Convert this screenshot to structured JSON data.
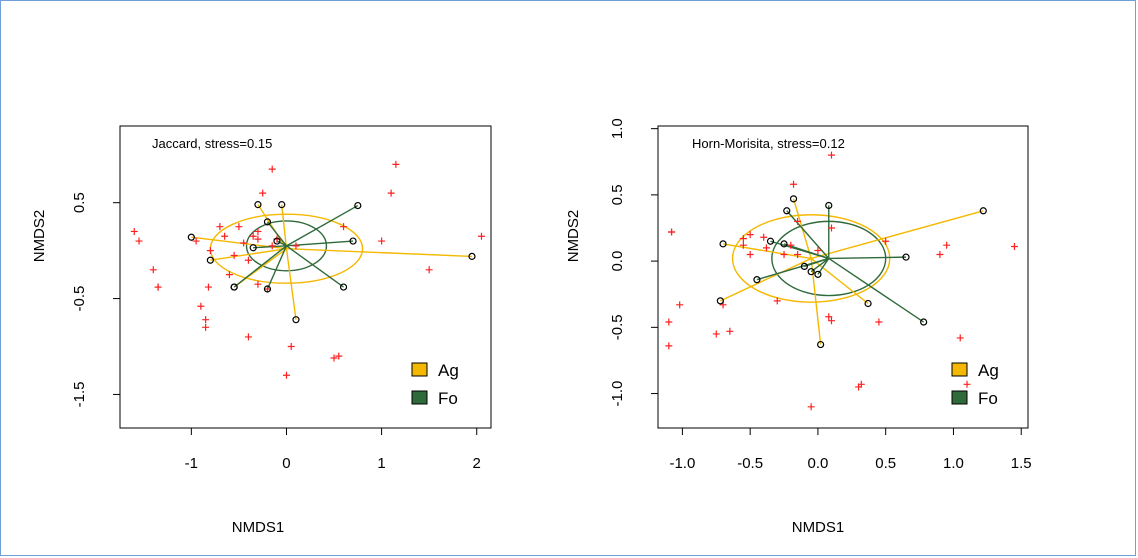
{
  "colors": {
    "ag": "#f5b800",
    "fo": "#2f6a3a",
    "species": "#ff2020",
    "frame": "#6f9fd8"
  },
  "chart_data": [
    {
      "type": "scatter",
      "annotation": "Jaccard, stress=0.15",
      "xlabel": "NMDS1",
      "ylabel": "NMDS2",
      "xlim": [
        -1.75,
        2.15
      ],
      "ylim": [
        -1.85,
        1.3
      ],
      "xticks": [
        -1,
        0,
        1,
        2
      ],
      "xtick_labels": [
        "-1",
        "0",
        "1",
        "2"
      ],
      "yticks": [
        -1.5,
        -0.5,
        0.5
      ],
      "ytick_labels": [
        "-1.5",
        "-0.5",
        "0.5"
      ],
      "legend": [
        {
          "label": "Ag",
          "color": "#f5b800"
        },
        {
          "label": "Fo",
          "color": "#2f6a3a"
        }
      ],
      "legend_position": "bottom-right",
      "species": [
        [
          -1.6,
          0.2
        ],
        [
          -1.55,
          0.1
        ],
        [
          -1.4,
          -0.2
        ],
        [
          -1.35,
          -0.38
        ],
        [
          -1.35,
          -0.38
        ],
        [
          -0.95,
          0.1
        ],
        [
          -0.8,
          0.0
        ],
        [
          -0.9,
          -0.58
        ],
        [
          -0.85,
          -0.72
        ],
        [
          -0.85,
          -0.8
        ],
        [
          -0.82,
          -0.38
        ],
        [
          -0.7,
          0.25
        ],
        [
          -0.65,
          0.15
        ],
        [
          -0.6,
          -0.25
        ],
        [
          -0.55,
          -0.05
        ],
        [
          -0.5,
          0.25
        ],
        [
          -0.45,
          0.08
        ],
        [
          -0.4,
          -0.1
        ],
        [
          -0.4,
          -0.9
        ],
        [
          -0.35,
          0.15
        ],
        [
          -0.3,
          0.2
        ],
        [
          -0.3,
          -0.35
        ],
        [
          -0.2,
          -0.4
        ],
        [
          -0.15,
          0.85
        ],
        [
          -0.1,
          0.12
        ],
        [
          0.05,
          -1.0
        ],
        [
          0.0,
          -1.3
        ],
        [
          0.1,
          0.05
        ],
        [
          0.5,
          -1.12
        ],
        [
          0.55,
          -1.1
        ],
        [
          0.6,
          0.25
        ],
        [
          1.0,
          0.1
        ],
        [
          1.1,
          0.6
        ],
        [
          1.15,
          0.9
        ],
        [
          1.5,
          -0.2
        ],
        [
          2.05,
          0.15
        ],
        [
          -0.25,
          0.6
        ],
        [
          -0.3,
          0.12
        ],
        [
          -0.15,
          0.05
        ]
      ],
      "ag": {
        "centroid": [
          0.0,
          0.02
        ],
        "sites": [
          [
            -1.0,
            0.14
          ],
          [
            -0.8,
            -0.1
          ],
          [
            -0.3,
            0.48
          ],
          [
            -0.05,
            0.48
          ],
          [
            0.1,
            -0.72
          ],
          [
            1.95,
            -0.06
          ],
          [
            -0.55,
            -0.38
          ]
        ],
        "ellipse": {
          "rx": 0.8,
          "ry": 0.36
        }
      },
      "fo": {
        "centroid": [
          0.0,
          0.05
        ],
        "sites": [
          [
            0.75,
            0.47
          ],
          [
            0.7,
            0.1
          ],
          [
            0.6,
            -0.38
          ],
          [
            -0.2,
            -0.4
          ],
          [
            -0.35,
            0.03
          ],
          [
            -0.55,
            -0.38
          ],
          [
            -0.1,
            0.1
          ],
          [
            -0.2,
            0.3
          ]
        ],
        "ellipse": {
          "rx": 0.42,
          "ry": 0.26
        }
      }
    },
    {
      "type": "scatter",
      "annotation": "Horn-Morisita, stress=0.12",
      "xlabel": "NMDS1",
      "ylabel": "NMDS2",
      "xlim": [
        -1.18,
        1.55
      ],
      "ylim": [
        -1.26,
        1.02
      ],
      "xticks": [
        -1.0,
        -0.5,
        0.0,
        0.5,
        1.0,
        1.5
      ],
      "xtick_labels": [
        "-1.0",
        "-0.5",
        "0.0",
        "0.5",
        "1.0",
        "1.5"
      ],
      "yticks": [
        -1.0,
        -0.5,
        0.0,
        0.5,
        1.0
      ],
      "ytick_labels": [
        "-1.0",
        "-0.5",
        "0.0",
        "0.5",
        "1.0"
      ],
      "legend": [
        {
          "label": "Ag",
          "color": "#f5b800"
        },
        {
          "label": "Fo",
          "color": "#2f6a3a"
        }
      ],
      "legend_position": "bottom-right",
      "species": [
        [
          -1.08,
          0.22
        ],
        [
          -1.08,
          0.22
        ],
        [
          -1.02,
          -0.33
        ],
        [
          -1.1,
          -0.46
        ],
        [
          -1.1,
          -0.64
        ],
        [
          -0.75,
          -0.55
        ],
        [
          -0.7,
          -0.33
        ],
        [
          -0.65,
          -0.53
        ],
        [
          -0.55,
          0.12
        ],
        [
          -0.5,
          0.05
        ],
        [
          -0.55,
          0.17
        ],
        [
          -0.5,
          0.2
        ],
        [
          -0.4,
          0.18
        ],
        [
          -0.38,
          0.1
        ],
        [
          -0.3,
          -0.3
        ],
        [
          -0.25,
          0.05
        ],
        [
          -0.2,
          0.12
        ],
        [
          -0.15,
          0.3
        ],
        [
          -0.15,
          0.05
        ],
        [
          -0.18,
          0.58
        ],
        [
          -0.05,
          -1.1
        ],
        [
          0.0,
          0.08
        ],
        [
          0.1,
          0.8
        ],
        [
          0.1,
          0.25
        ],
        [
          0.08,
          -0.42
        ],
        [
          0.1,
          -0.45
        ],
        [
          0.3,
          -0.95
        ],
        [
          0.32,
          -0.93
        ],
        [
          0.45,
          -0.46
        ],
        [
          0.5,
          0.15
        ],
        [
          0.9,
          0.05
        ],
        [
          0.95,
          0.12
        ],
        [
          1.05,
          -0.58
        ],
        [
          1.1,
          -0.93
        ],
        [
          1.45,
          0.11
        ]
      ],
      "ag": {
        "centroid": [
          -0.05,
          0.02
        ],
        "sites": [
          [
            -0.7,
            0.13
          ],
          [
            -0.72,
            -0.3
          ],
          [
            -0.18,
            0.47
          ],
          [
            0.02,
            -0.63
          ],
          [
            0.37,
            -0.32
          ],
          [
            1.22,
            0.38
          ]
        ],
        "ellipse": {
          "rx": 0.58,
          "ry": 0.33
        }
      },
      "fo": {
        "centroid": [
          0.08,
          0.02
        ],
        "sites": [
          [
            -0.23,
            0.38
          ],
          [
            -0.35,
            0.15
          ],
          [
            -0.45,
            -0.14
          ],
          [
            0.08,
            0.42
          ],
          [
            0.65,
            0.03
          ],
          [
            0.78,
            -0.46
          ],
          [
            0.0,
            -0.1
          ],
          [
            -0.05,
            -0.08
          ],
          [
            -0.1,
            -0.04
          ],
          [
            -0.25,
            0.13
          ]
        ],
        "ellipse": {
          "rx": 0.42,
          "ry": 0.28
        }
      }
    }
  ]
}
